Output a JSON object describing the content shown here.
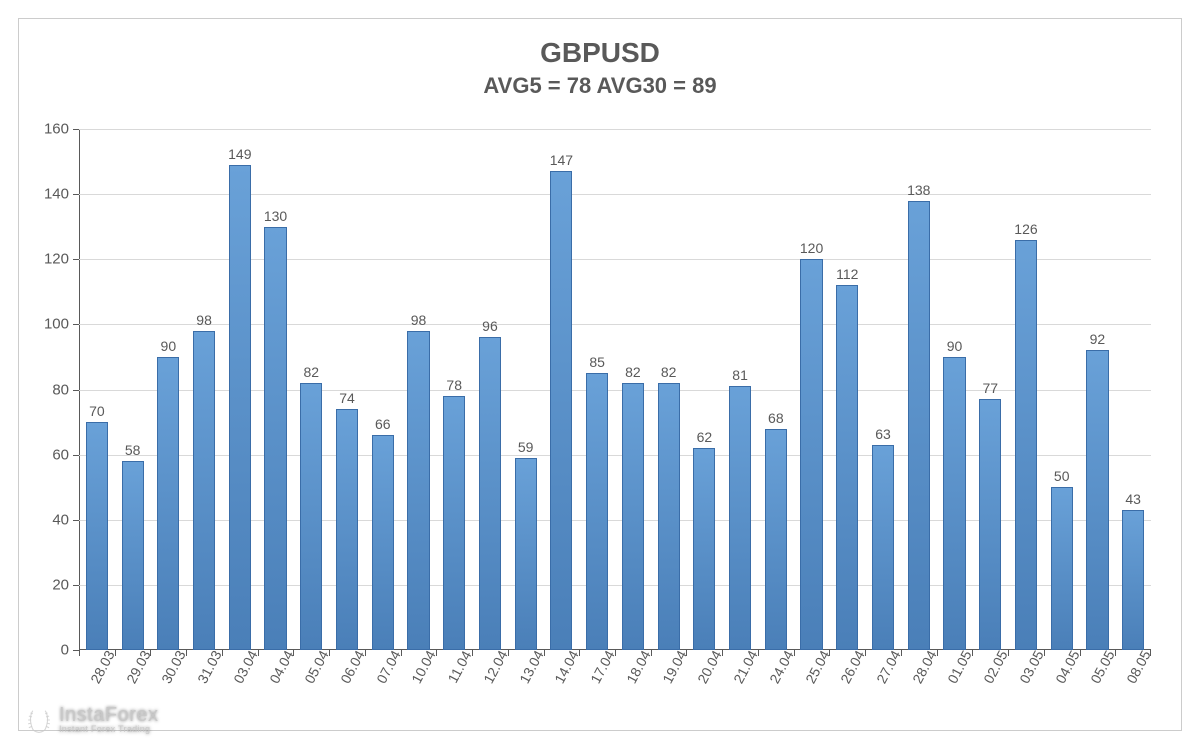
{
  "chart": {
    "type": "bar",
    "title": "GBPUSD",
    "subtitle": "AVG5 = 78 AVG30 = 89",
    "title_color": "#595959",
    "title_fontsize": 28,
    "subtitle_fontsize": 22,
    "background_color": "#ffffff",
    "border_color": "#cccccc",
    "ylim": [
      0,
      160
    ],
    "ytick_step": 20,
    "yticks": [
      0,
      20,
      40,
      60,
      80,
      100,
      120,
      140,
      160
    ],
    "grid_color": "#d9d9d9",
    "axis_color": "#595959",
    "axis_label_color": "#595959",
    "axis_label_fontsize": 15,
    "x_label_rotation": -62,
    "x_label_fontsize": 14,
    "bar_color_fill_top": "#69a1d8",
    "bar_color_fill_bottom": "#4a7fb8",
    "bar_border_color": "#3a6da8",
    "bar_width": 0.62,
    "data_label_fontsize": 14,
    "data_label_color": "#595959",
    "categories": [
      "28.03",
      "29.03",
      "30.03",
      "31.03",
      "03.04",
      "04.04",
      "05.04",
      "06.04",
      "07.04",
      "10.04",
      "11.04",
      "12.04",
      "13.04",
      "14.04",
      "17.04",
      "18.04",
      "19.04",
      "20.04",
      "21.04",
      "24.04",
      "25.04",
      "26.04",
      "27.04",
      "28.04",
      "01.05",
      "02.05",
      "03.05",
      "04.05",
      "05.05",
      "08.05"
    ],
    "values": [
      70,
      58,
      90,
      98,
      149,
      130,
      82,
      74,
      66,
      98,
      78,
      96,
      59,
      147,
      85,
      82,
      82,
      62,
      81,
      68,
      120,
      112,
      63,
      138,
      90,
      77,
      126,
      50,
      92,
      43
    ]
  },
  "watermark": {
    "brand": "InstaForex",
    "tagline": "Instant Forex Trading",
    "icon_name": "wreath-icon",
    "brand_color": "rgba(200,200,200,0.9)"
  }
}
